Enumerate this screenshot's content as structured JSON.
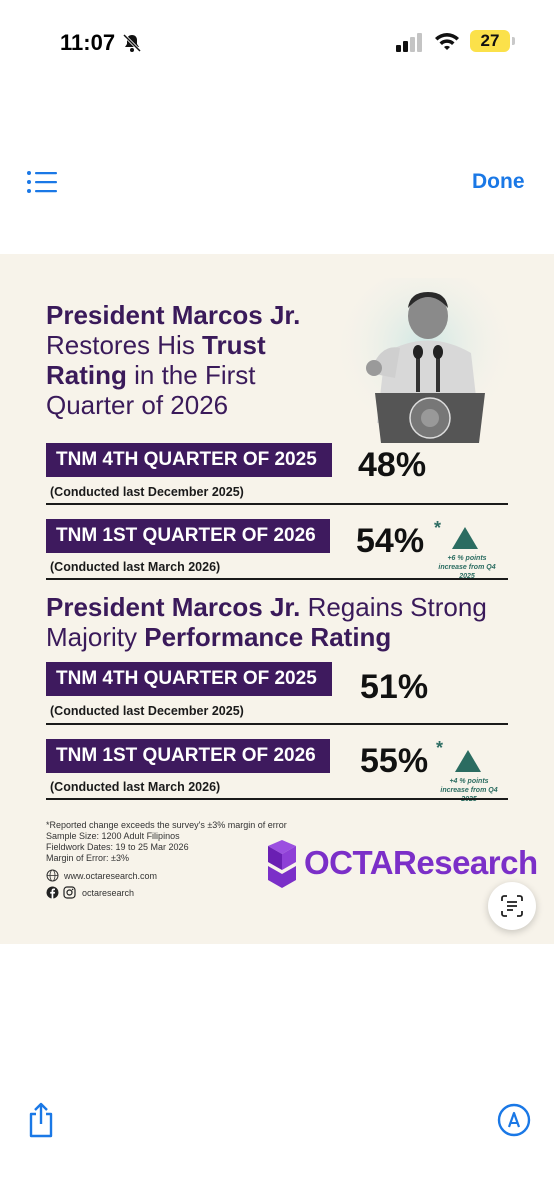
{
  "status": {
    "time": "11:07",
    "battery": "27"
  },
  "toolbar": {
    "done_label": "Done"
  },
  "infographic": {
    "headline1": {
      "p1": "President Marcos Jr.",
      "p2": " Restores His ",
      "p3": "Trust Rating",
      "p4": " in the First Quarter of 2026"
    },
    "trust": [
      {
        "label": "TNM 4TH QUARTER OF 2025",
        "sub": "(Conducted last December 2025)",
        "pct": "48%"
      },
      {
        "label": "TNM 1ST QUARTER OF 2026",
        "sub": "(Conducted last March 2026)",
        "pct": "54%",
        "ast": "*",
        "note1": "+6 % points",
        "note2": "increase from Q4 2025"
      }
    ],
    "headline2": {
      "p1": "President Marcos Jr.",
      "p2": " Regains Strong Majority ",
      "p3": "Performance Rating"
    },
    "performance": [
      {
        "label": "TNM 4TH QUARTER OF 2025",
        "sub": "(Conducted last December 2025)",
        "pct": "51%"
      },
      {
        "label": "TNM 1ST QUARTER OF 2026",
        "sub": "(Conducted last March 2026)",
        "pct": "55%",
        "ast": "*",
        "note1": "+4 % points",
        "note2": "increase from Q4 2025"
      }
    ],
    "footnotes": {
      "line1": "*Reported change exceeds the survey's ±3% margin of error",
      "line2": "Sample Size: 1200 Adult Filipinos",
      "line3": "Fieldwork Dates: 19 to 25 Mar 2026",
      "line4": "Margin of Error: ±3%",
      "website": "www.octaresearch.com",
      "social": "octaresearch"
    },
    "logo": "OCTAResearch"
  },
  "colors": {
    "purple": "#3e1a5e",
    "teal": "#2b6c61",
    "accent_blue": "#1a78e6",
    "logo_purple": "#7b2fc8"
  }
}
